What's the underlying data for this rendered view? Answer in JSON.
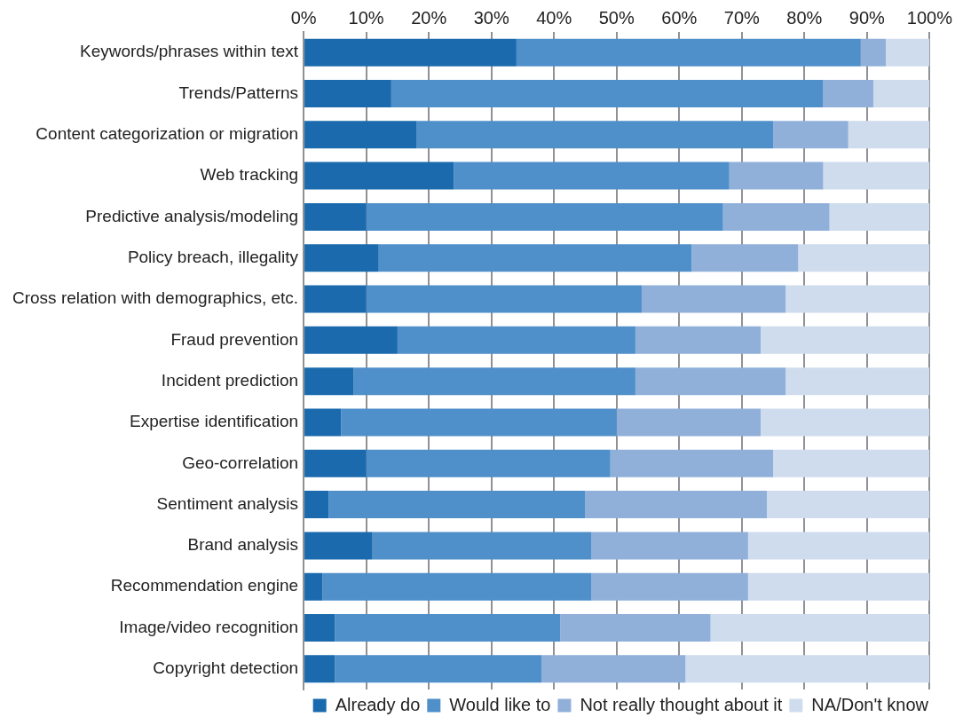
{
  "chart_data": {
    "type": "bar",
    "orientation": "horizontal",
    "stacked": true,
    "categories": [
      "Keywords/phrases within text",
      "Trends/Patterns",
      "Content categorization or migration",
      "Web tracking",
      "Predictive analysis/modeling",
      "Policy breach, illegality",
      "Cross relation with demographics, etc.",
      "Fraud prevention",
      "Incident prediction",
      "Expertise identification",
      "Geo-correlation",
      "Sentiment analysis",
      "Brand analysis",
      "Recommendation engine",
      "Image/video recognition",
      "Copyright detection"
    ],
    "series": [
      {
        "name": "Already do",
        "color": "#1a6aad",
        "values": [
          34,
          14,
          18,
          24,
          10,
          12,
          10,
          15,
          8,
          6,
          10,
          4,
          11,
          3,
          5,
          5
        ]
      },
      {
        "name": "Would like to",
        "color": "#4f8fca",
        "values": [
          55,
          69,
          57,
          44,
          57,
          50,
          44,
          38,
          45,
          44,
          39,
          41,
          35,
          43,
          36,
          33
        ]
      },
      {
        "name": "Not really thought about it",
        "color": "#90b0da",
        "values": [
          4,
          8,
          12,
          15,
          17,
          17,
          23,
          20,
          24,
          23,
          26,
          29,
          25,
          25,
          24,
          23
        ]
      },
      {
        "name": "NA/Don't know",
        "color": "#cfdcee",
        "values": [
          7,
          9,
          13,
          17,
          16,
          21,
          23,
          27,
          23,
          27,
          25,
          26,
          29,
          29,
          35,
          39
        ]
      }
    ],
    "xlim": [
      0,
      100
    ],
    "xticks": [
      {
        "value": 0,
        "label": "0%"
      },
      {
        "value": 10,
        "label": "10%"
      },
      {
        "value": 20,
        "label": "20%"
      },
      {
        "value": 30,
        "label": "30%"
      },
      {
        "value": 40,
        "label": "40%"
      },
      {
        "value": 50,
        "label": "50%"
      },
      {
        "value": 60,
        "label": "60%"
      },
      {
        "value": 70,
        "label": "70%"
      },
      {
        "value": 80,
        "label": "80%"
      },
      {
        "value": 90,
        "label": "90%"
      },
      {
        "value": 100,
        "label": "100%"
      }
    ],
    "grid": "x",
    "legend": "bottom"
  }
}
